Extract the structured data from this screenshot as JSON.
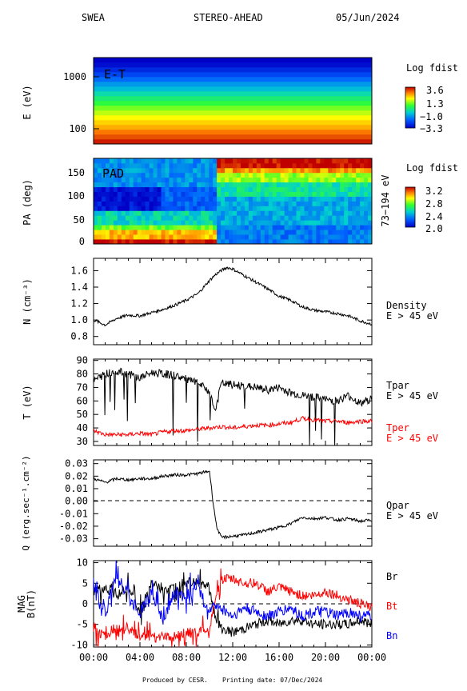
{
  "header": {
    "instrument": "SWEA",
    "spacecraft": "STEREO-AHEAD",
    "date": "05/Jun/2024"
  },
  "footer": {
    "produced": "Produced by CESR.",
    "printing": "Printing date: 07/Dec/2024"
  },
  "colors": {
    "black": "#000000",
    "red": "#ff0000",
    "blue": "#0000ff"
  },
  "chart_data": [
    {
      "type": "heatmap",
      "panel": "energy-time",
      "inner_label": "E-T",
      "ylabel": "E (eV)",
      "yscale": "log",
      "ylim": [
        50,
        2500
      ],
      "yticks": [
        "100",
        "1000"
      ],
      "colorbar_title": "Log fdist",
      "colorbar_ticks": [
        "3.6",
        "1.3",
        "−1.0",
        "−3.3"
      ],
      "energy_bands_fdist": [
        3.4,
        3.0,
        2.7,
        2.3,
        2.0,
        1.7,
        1.3,
        0.9,
        0.4,
        0.0,
        -0.4,
        -0.9,
        -1.3,
        -1.8,
        -2.3,
        -2.7,
        -3.1,
        -3.3
      ]
    },
    {
      "type": "heatmap",
      "panel": "pitch-angle",
      "inner_label": "PAD",
      "ylabel": "PA (deg)",
      "ylim": [
        0,
        180
      ],
      "yticks": [
        "0",
        "50",
        "100",
        "150"
      ],
      "right_label": "73−194 eV",
      "colorbar_title": "Log fdist",
      "colorbar_ticks": [
        "3.2",
        "2.8",
        "2.4",
        "2.0"
      ],
      "description_values": {
        "before_10_40_low_pa": 3.2,
        "before_10_40_high_pa": 2.2,
        "after_10_40_high_pa": 3.2,
        "after_10_40_low_pa": 2.3
      }
    },
    {
      "type": "line",
      "panel": "density",
      "ylabel": "N (cm⁻³)",
      "ylim": [
        0.7,
        1.75
      ],
      "yticks": [
        "0.8",
        "1.0",
        "1.2",
        "1.4",
        "1.6"
      ],
      "series": [
        {
          "name": "Density",
          "sublabel": "E > 45 eV",
          "color": "#000000",
          "x": [
            0,
            1,
            2,
            3,
            4,
            5,
            6,
            7,
            8,
            9,
            9.5,
            10,
            10.5,
            11,
            11.5,
            12,
            13,
            14,
            15,
            16,
            17,
            18,
            19,
            20,
            21,
            22,
            23,
            24
          ],
          "y": [
            1.0,
            0.94,
            1.02,
            1.06,
            1.05,
            1.09,
            1.13,
            1.18,
            1.24,
            1.32,
            1.4,
            1.48,
            1.55,
            1.6,
            1.64,
            1.62,
            1.54,
            1.46,
            1.38,
            1.29,
            1.24,
            1.16,
            1.12,
            1.1,
            1.08,
            1.05,
            0.99,
            0.95
          ]
        }
      ]
    },
    {
      "type": "line",
      "panel": "temperature",
      "ylabel": "T (eV)",
      "ylim": [
        27,
        91
      ],
      "yticks": [
        "30",
        "40",
        "50",
        "60",
        "70",
        "80",
        "90"
      ],
      "series": [
        {
          "name": "Tpar",
          "sublabel": "E > 45 eV",
          "color": "#000000",
          "x": [
            0,
            1,
            2,
            3,
            4,
            5,
            6,
            7,
            8,
            9,
            10,
            10.5,
            11,
            12,
            13,
            14,
            15,
            16,
            17,
            18,
            19,
            20,
            21,
            22,
            23,
            24
          ],
          "y": [
            75,
            80,
            82,
            80,
            77,
            81,
            80,
            79,
            76,
            73,
            67,
            52,
            73,
            72,
            71,
            70,
            68,
            70,
            66,
            64,
            63,
            61,
            60,
            64,
            58,
            62
          ]
        },
        {
          "name": "Tper",
          "sublabel": "E > 45 eV",
          "color": "#ff0000",
          "x": [
            0,
            1,
            2,
            3,
            4,
            5,
            6,
            7,
            8,
            9,
            10,
            11,
            12,
            13,
            14,
            15,
            16,
            17,
            18,
            19,
            20,
            21,
            22,
            23,
            24
          ],
          "y": [
            38,
            35,
            35,
            35,
            36,
            35,
            37,
            38,
            38,
            39,
            40,
            41,
            40,
            41,
            42,
            42,
            43,
            44,
            47,
            46,
            45,
            45,
            44,
            45,
            45
          ]
        }
      ]
    },
    {
      "type": "line",
      "panel": "heat-flux",
      "ylabel": "Q (erg.sec⁻¹.cm⁻²)",
      "ylim": [
        -0.036,
        0.033
      ],
      "yticks": [
        "-0.03",
        "-0.02",
        "-0.01",
        "0.00",
        "0.01",
        "0.02",
        "0.03"
      ],
      "series": [
        {
          "name": "Qpar",
          "sublabel": "E > 45 eV",
          "color": "#000000",
          "x": [
            0,
            1,
            2,
            3,
            4,
            5,
            6,
            7,
            8,
            9,
            10,
            10.3,
            10.6,
            11,
            12,
            13,
            14,
            15,
            16,
            17,
            18,
            19,
            20,
            21,
            22,
            23,
            24
          ],
          "y": [
            0.018,
            0.015,
            0.018,
            0.017,
            0.018,
            0.018,
            0.02,
            0.021,
            0.021,
            0.022,
            0.024,
            0.0,
            -0.02,
            -0.029,
            -0.028,
            -0.027,
            -0.025,
            -0.023,
            -0.021,
            -0.018,
            -0.013,
            -0.014,
            -0.013,
            -0.015,
            -0.014,
            -0.016,
            -0.015
          ]
        }
      ]
    },
    {
      "type": "line",
      "panel": "magnetic-field",
      "ylabel_top": "MAG",
      "ylabel": "B(nT)",
      "ylim": [
        -10.5,
        10.5
      ],
      "yticks": [
        "-10",
        "-5",
        "0",
        "5",
        "10"
      ],
      "xticks": [
        "00:00",
        "04:00",
        "08:00",
        "12:00",
        "16:00",
        "20:00",
        "00:00"
      ],
      "xlim": [
        0,
        24
      ],
      "series": [
        {
          "name": "Br",
          "color": "#000000",
          "x": [
            0,
            1,
            2,
            3,
            4,
            5,
            6,
            7,
            8,
            9,
            10,
            10.5,
            11,
            12,
            13,
            14,
            15,
            16,
            17,
            18,
            19,
            20,
            21,
            22,
            23,
            24
          ],
          "y": [
            3,
            4,
            2,
            4,
            -2,
            5,
            3,
            4,
            6,
            5,
            4,
            -3,
            -6,
            -7,
            -6,
            -5,
            -4,
            -5,
            -4,
            -4,
            -5,
            -5,
            -5,
            -5,
            -4,
            -5
          ]
        },
        {
          "name": "Bt",
          "color": "#ff0000",
          "x": [
            0,
            0.5,
            1,
            2,
            3,
            4,
            5,
            6,
            7,
            8,
            9,
            10,
            10.5,
            11,
            12,
            13,
            14,
            15,
            16,
            17,
            18,
            19,
            20,
            21,
            22,
            23,
            24
          ],
          "y": [
            -6,
            -7,
            -8,
            -6,
            -6,
            -8,
            -7,
            -8,
            -8,
            -7,
            -7,
            -6,
            0,
            6,
            6,
            5,
            5,
            3,
            4,
            3,
            2,
            2,
            3,
            2,
            1,
            0,
            -1
          ]
        },
        {
          "name": "Bn",
          "color": "#0000ff",
          "x": [
            0,
            1,
            2,
            3,
            4,
            5,
            6,
            7,
            8,
            9,
            10,
            10.5,
            11,
            12,
            13,
            14,
            15,
            16,
            17,
            18,
            19,
            20,
            21,
            22,
            23,
            24
          ],
          "y": [
            5,
            -2,
            7,
            2,
            -2,
            3,
            -4,
            3,
            2,
            4,
            -2,
            0,
            -1,
            -3,
            -1,
            -2,
            -3,
            -2,
            -1,
            -3,
            -2,
            -2,
            -3,
            -2,
            -3,
            -3
          ]
        }
      ]
    }
  ]
}
